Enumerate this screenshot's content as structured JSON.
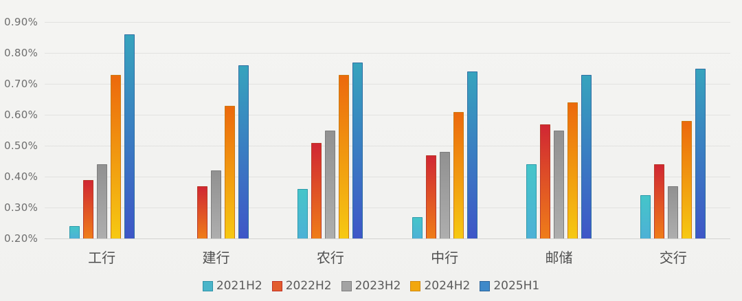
{
  "chart_data": {
    "type": "bar",
    "title": "",
    "xlabel": "",
    "ylabel": "",
    "categories": [
      "工行",
      "建行",
      "农行",
      "中行",
      "邮储",
      "交行"
    ],
    "series": [
      {
        "name": "2021H2",
        "values": [
          0.24,
          0.2,
          0.36,
          0.27,
          0.44,
          0.34
        ],
        "gradient_top": "#45c5c9",
        "gradient_bottom": "#4db1d6",
        "border": "#2e9aab",
        "legend_fill": "#4bb5c9",
        "legend_border": "#2e93a8"
      },
      {
        "name": "2022H2",
        "values": [
          0.39,
          0.37,
          0.51,
          0.47,
          0.57,
          0.44
        ],
        "gradient_top": "#d02733",
        "gradient_bottom": "#ef7d19",
        "border": "#b93a28",
        "legend_fill": "#e25c2e",
        "legend_border": "#c13226"
      },
      {
        "name": "2023H2",
        "values": [
          0.44,
          0.42,
          0.55,
          0.48,
          0.55,
          0.37
        ],
        "gradient_top": "#919191",
        "gradient_bottom": "#aeaeae",
        "border": "#7c7c7c",
        "legend_fill": "#a3a3a3",
        "legend_border": "#7e7e7e"
      },
      {
        "name": "2024H2",
        "values": [
          0.73,
          0.63,
          0.73,
          0.61,
          0.64,
          0.58
        ],
        "gradient_top": "#ec690d",
        "gradient_bottom": "#f6c913",
        "border": "#cb7a12",
        "legend_fill": "#f2a70e",
        "legend_border": "#d18a10"
      },
      {
        "name": "2025H1",
        "values": [
          0.86,
          0.76,
          0.77,
          0.74,
          0.73,
          0.75
        ],
        "gradient_top": "#37a3bd",
        "gradient_bottom": "#3e56c7",
        "border": "#2f6fa3",
        "legend_fill": "#3e89c9",
        "legend_border": "#2b6399"
      }
    ],
    "ylim": [
      0.2,
      0.9
    ],
    "ytick_step": 0.1,
    "ytick_labels": [
      "0.20%",
      "0.30%",
      "0.40%",
      "0.50%",
      "0.60%",
      "0.70%",
      "0.80%",
      "0.90%"
    ],
    "grid": "horizontal",
    "legend_position": "bottom-center",
    "background_color": "#f2f2f0",
    "gridline_color": "#e2e2e0",
    "axis_text_color": "#6e6e6e",
    "category_text_color": "#4f4f4f",
    "legend_text_color": "#5a5a5a"
  }
}
